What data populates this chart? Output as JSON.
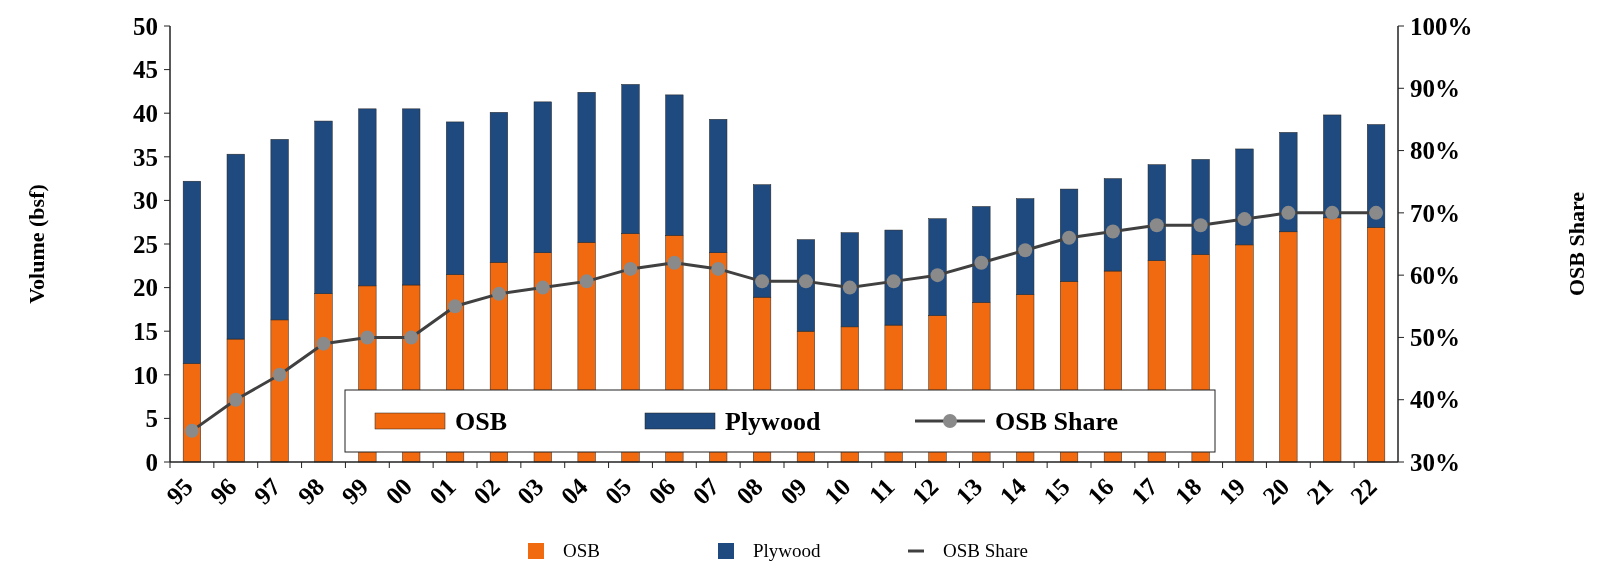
{
  "chart_data": {
    "type": "bar",
    "stacked": true,
    "xlabel": null,
    "ylabel": "Volume (bsf)",
    "y2label": "OSB Share",
    "categories": [
      "95",
      "96",
      "97",
      "98",
      "99",
      "00",
      "01",
      "02",
      "03",
      "04",
      "05",
      "06",
      "07",
      "08",
      "09",
      "10",
      "11",
      "12",
      "13",
      "14",
      "15",
      "16",
      "17",
      "18",
      "19",
      "20",
      "21",
      "22"
    ],
    "series": [
      {
        "name": "OSB",
        "color": "#f26a10",
        "values": [
          11.3,
          14.1,
          16.3,
          19.3,
          20.2,
          20.3,
          21.5,
          22.9,
          24,
          25.2,
          26.2,
          26,
          24,
          18.9,
          15,
          15.5,
          15.7,
          16.8,
          18.3,
          19.2,
          20.7,
          21.9,
          23.1,
          23.8,
          24.9,
          26.4,
          28,
          26.9
        ]
      },
      {
        "name": "Plywood",
        "color": "#1f4a7f",
        "values": [
          20.9,
          21.2,
          20.7,
          19.8,
          20.3,
          20.2,
          17.5,
          17.2,
          17.3,
          17.2,
          17.1,
          16.1,
          15.3,
          12.9,
          10.5,
          10.8,
          10.9,
          11.1,
          11,
          11,
          10.6,
          10.6,
          11,
          10.9,
          11,
          11.4,
          11.8,
          11.8
        ]
      },
      {
        "name": "OSB Share",
        "type": "line",
        "axis": "y2",
        "color": "#404040",
        "marker": "circle",
        "values": [
          35,
          40,
          44,
          49,
          50,
          50,
          55,
          57,
          58,
          59,
          61,
          62,
          61,
          59,
          59,
          58,
          59,
          60,
          62,
          64,
          66,
          67,
          68,
          68,
          69,
          70,
          70,
          70
        ]
      }
    ],
    "ylim": [
      0,
      50
    ],
    "yticks": [
      0,
      5,
      10,
      15,
      20,
      25,
      30,
      35,
      40,
      45,
      50
    ],
    "y2lim": [
      30,
      100
    ],
    "y2ticks": [
      {
        "value": 30,
        "label": "30%"
      },
      {
        "value": 40,
        "label": "40%"
      },
      {
        "value": 50,
        "label": "50%"
      },
      {
        "value": 60,
        "label": "60%"
      },
      {
        "value": 70,
        "label": "70%"
      },
      {
        "value": 80,
        "label": "80%"
      },
      {
        "value": 90,
        "label": "90%"
      },
      {
        "value": 100,
        "label": "100%"
      }
    ],
    "legend": "bottom",
    "grid": false
  }
}
